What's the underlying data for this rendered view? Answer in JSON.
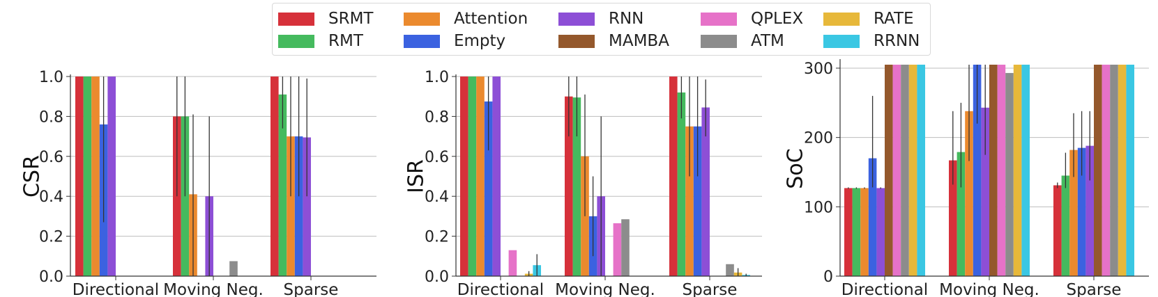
{
  "legend": {
    "items": [
      {
        "name": "SRMT",
        "color": "#d6313a"
      },
      {
        "name": "RMT",
        "color": "#45ba5e"
      },
      {
        "name": "Attention",
        "color": "#eb8a2e"
      },
      {
        "name": "Empty",
        "color": "#3b62e0"
      },
      {
        "name": "RNN",
        "color": "#8d4fd6"
      },
      {
        "name": "MAMBA",
        "color": "#94582c"
      },
      {
        "name": "QPLEX",
        "color": "#e672c8"
      },
      {
        "name": "ATM",
        "color": "#8c8c8c"
      },
      {
        "name": "RATE",
        "color": "#e7b83a"
      },
      {
        "name": "RRNN",
        "color": "#3ac7e3"
      }
    ]
  },
  "chart_data": [
    {
      "type": "bar",
      "ylabel": "CSR",
      "xlabel": "",
      "ylim": [
        0,
        1.0
      ],
      "yticks": [
        "0.0",
        "0.2",
        "0.4",
        "0.6",
        "0.8",
        "1.0"
      ],
      "grid": "horizontal",
      "categories": [
        "Directional",
        "Moving Neg.",
        "Sparse"
      ],
      "series": [
        {
          "name": "SRMT",
          "values": [
            1.0,
            0.8,
            1.0
          ],
          "err_low": [
            null,
            0.4,
            null
          ],
          "err_high": [
            null,
            1.0,
            null
          ]
        },
        {
          "name": "RMT",
          "values": [
            1.0,
            0.8,
            0.91
          ],
          "err_low": [
            null,
            0.4,
            0.74
          ],
          "err_high": [
            null,
            1.0,
            1.0
          ]
        },
        {
          "name": "Attention",
          "values": [
            1.0,
            0.41,
            0.7
          ],
          "err_low": [
            null,
            0.0,
            0.4
          ],
          "err_high": [
            null,
            0.81,
            1.0
          ]
        },
        {
          "name": "Empty",
          "values": [
            0.76,
            0.0,
            0.7
          ],
          "err_low": [
            0.27,
            null,
            0.4
          ],
          "err_high": [
            1.0,
            null,
            1.0
          ]
        },
        {
          "name": "RNN",
          "values": [
            1.0,
            0.4,
            0.695
          ],
          "err_low": [
            null,
            0.0,
            0.4
          ],
          "err_high": [
            null,
            0.8,
            0.99
          ]
        },
        {
          "name": "MAMBA",
          "values": [
            0.0,
            0.0,
            0.0
          ]
        },
        {
          "name": "QPLEX",
          "values": [
            0.0,
            0.0,
            0.0
          ]
        },
        {
          "name": "ATM",
          "values": [
            0.0,
            0.075,
            0.0
          ]
        },
        {
          "name": "RATE",
          "values": [
            0.0,
            0.0,
            0.0
          ]
        },
        {
          "name": "RRNN",
          "values": [
            0.0,
            0.0,
            0.0
          ]
        }
      ]
    },
    {
      "type": "bar",
      "ylabel": "ISR",
      "xlabel": "",
      "ylim": [
        0,
        1.0
      ],
      "yticks": [
        "0.0",
        "0.2",
        "0.4",
        "0.6",
        "0.8",
        "1.0"
      ],
      "grid": "horizontal",
      "categories": [
        "Directional",
        "Moving Neg.",
        "Sparse"
      ],
      "series": [
        {
          "name": "SRMT",
          "values": [
            1.0,
            0.9,
            1.0
          ],
          "err_low": [
            null,
            0.7,
            null
          ],
          "err_high": [
            null,
            1.0,
            null
          ]
        },
        {
          "name": "RMT",
          "values": [
            1.0,
            0.895,
            0.92
          ],
          "err_low": [
            null,
            0.7,
            0.79
          ],
          "err_high": [
            null,
            1.0,
            1.0
          ]
        },
        {
          "name": "Attention",
          "values": [
            1.0,
            0.6,
            0.75
          ],
          "err_low": [
            null,
            0.3,
            0.5
          ],
          "err_high": [
            null,
            0.91,
            1.0
          ]
        },
        {
          "name": "Empty",
          "values": [
            0.875,
            0.3,
            0.75
          ],
          "err_low": [
            0.63,
            0.1,
            0.5
          ],
          "err_high": [
            1.0,
            0.5,
            1.0
          ]
        },
        {
          "name": "RNN",
          "values": [
            1.0,
            0.4,
            0.845
          ],
          "err_low": [
            null,
            0.0,
            0.7
          ],
          "err_high": [
            null,
            0.8,
            0.985
          ]
        },
        {
          "name": "MAMBA",
          "values": [
            0.0,
            0.0,
            0.0
          ]
        },
        {
          "name": "QPLEX",
          "values": [
            0.13,
            0.265,
            0.0
          ]
        },
        {
          "name": "ATM",
          "values": [
            0.0,
            0.285,
            0.06
          ]
        },
        {
          "name": "RATE",
          "values": [
            0.012,
            0.0,
            0.018
          ],
          "err_low": [
            0.0,
            null,
            0.0
          ],
          "err_high": [
            0.025,
            null,
            0.04
          ]
        },
        {
          "name": "RRNN",
          "values": [
            0.055,
            0.0,
            0.006
          ],
          "err_low": [
            0.0,
            null,
            0.0
          ],
          "err_high": [
            0.11,
            null,
            0.012
          ]
        }
      ]
    },
    {
      "type": "bar",
      "ylabel": "SoC",
      "xlabel": "",
      "ylim": [
        0,
        310
      ],
      "yticks": [
        "0",
        "100",
        "200",
        "300"
      ],
      "grid": "horizontal",
      "categories": [
        "Directional",
        "Moving Neg.",
        "Sparse"
      ],
      "series": [
        {
          "name": "SRMT",
          "values": [
            127,
            167,
            131
          ],
          "err_low": [
            126,
            132,
            127
          ],
          "err_high": [
            128,
            238,
            135
          ]
        },
        {
          "name": "RMT",
          "values": [
            127,
            179,
            145
          ],
          "err_low": [
            126,
            128,
            127
          ],
          "err_high": [
            128,
            250,
            178
          ]
        },
        {
          "name": "Attention",
          "values": [
            127,
            238,
            182
          ],
          "err_low": [
            126,
            166,
            143
          ],
          "err_high": [
            128,
            305,
            235
          ]
        },
        {
          "name": "Empty",
          "values": [
            170,
            305,
            185
          ],
          "err_low": [
            128,
            220,
            145
          ],
          "err_high": [
            260,
            305,
            238
          ]
        },
        {
          "name": "RNN",
          "values": [
            127,
            243,
            188
          ],
          "err_low": [
            126,
            175,
            138
          ],
          "err_high": [
            128,
            305,
            238
          ]
        },
        {
          "name": "MAMBA",
          "values": [
            305,
            305,
            305
          ]
        },
        {
          "name": "QPLEX",
          "values": [
            305,
            305,
            305
          ]
        },
        {
          "name": "ATM",
          "values": [
            305,
            293,
            305
          ]
        },
        {
          "name": "RATE",
          "values": [
            305,
            305,
            305
          ]
        },
        {
          "name": "RRNN",
          "values": [
            305,
            305,
            305
          ]
        }
      ]
    }
  ]
}
